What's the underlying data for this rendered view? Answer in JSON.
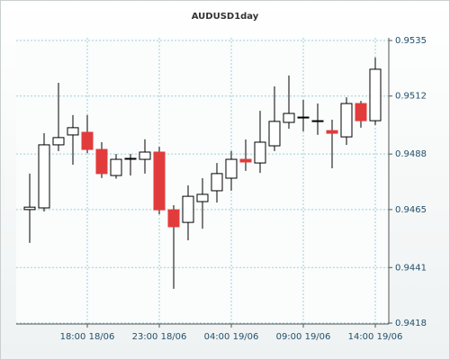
{
  "chart_data": {
    "type": "candlestick",
    "title": "AUDUSD1day",
    "categories": [
      null,
      null,
      null,
      null,
      "18:00 18/06",
      null,
      null,
      null,
      null,
      "23:00 18/06",
      null,
      null,
      null,
      null,
      "04:00 19/06",
      null,
      null,
      null,
      null,
      "09:00 19/06",
      null,
      null,
      null,
      null,
      "14:00 19/06"
    ],
    "open": [
      0.9465,
      0.94657,
      0.94918,
      0.94959,
      0.9497,
      0.94899,
      0.94791,
      0.94862,
      0.94858,
      0.94888,
      0.94649,
      0.94597,
      0.94683,
      0.94728,
      0.9478,
      0.94858,
      0.94843,
      0.94914,
      0.95011,
      0.95033,
      0.95018,
      0.94977,
      0.94951,
      0.95089,
      0.95018
    ],
    "high": [
      0.94799,
      0.94966,
      0.95175,
      0.95041,
      0.95041,
      0.94929,
      0.9488,
      0.9488,
      0.94941,
      0.9491,
      0.94668,
      0.9475,
      0.9478,
      0.94843,
      0.94892,
      0.9494,
      0.95059,
      0.9516,
      0.95205,
      0.95104,
      0.95089,
      0.95022,
      0.95115,
      0.951,
      0.95279
    ],
    "low": [
      0.94512,
      0.94642,
      0.94892,
      0.94836,
      0.94884,
      0.94781,
      0.94778,
      0.94791,
      0.94799,
      0.94631,
      0.94322,
      0.94523,
      0.94571,
      0.94679,
      0.94728,
      0.9481,
      0.94802,
      0.94892,
      0.94985,
      0.94974,
      0.94959,
      0.94821,
      0.94918,
      0.94989,
      0.95
    ],
    "close": [
      0.9466,
      0.94918,
      0.94948,
      0.94989,
      0.94899,
      0.94799,
      0.94858,
      0.94862,
      0.94888,
      0.94649,
      0.94579,
      0.94705,
      0.94713,
      0.94799,
      0.94858,
      0.94847,
      0.94929,
      0.95015,
      0.95048,
      0.95033,
      0.95018,
      0.94966,
      0.95089,
      0.95018,
      0.95231
    ],
    "up_color": "#ffffff",
    "down_color": "#e23b3b",
    "ylim": [
      0.9418,
      0.9535
    ],
    "yticks": [
      0.9418,
      0.9441,
      0.9465,
      0.9488,
      0.9512,
      0.9535
    ],
    "grid": true
  }
}
